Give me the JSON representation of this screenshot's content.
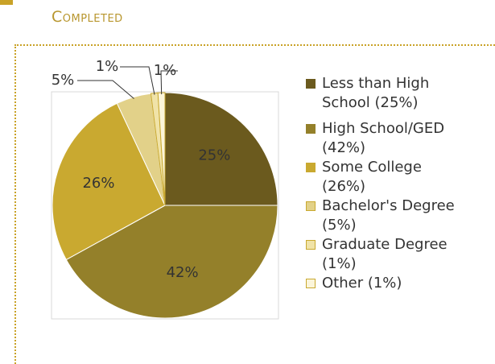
{
  "chart_data": {
    "type": "pie",
    "title": "Completed",
    "categories": [
      "Less than High School (25%)",
      "High School/GED (42%)",
      "Some College (26%)",
      "Bachelor's Degree (5%)",
      "Graduate Degree (1%)",
      "Other (1%)"
    ],
    "values": [
      25,
      42,
      26,
      5,
      1,
      1
    ],
    "value_labels": [
      "25%",
      "42%",
      "26%",
      "5%",
      "1%",
      "1%"
    ],
    "colors": [
      "#6b5a1e",
      "#94802a",
      "#c9a930",
      "#e2d189",
      "#f0e3a8",
      "#fbf5da"
    ],
    "legend": "right"
  }
}
